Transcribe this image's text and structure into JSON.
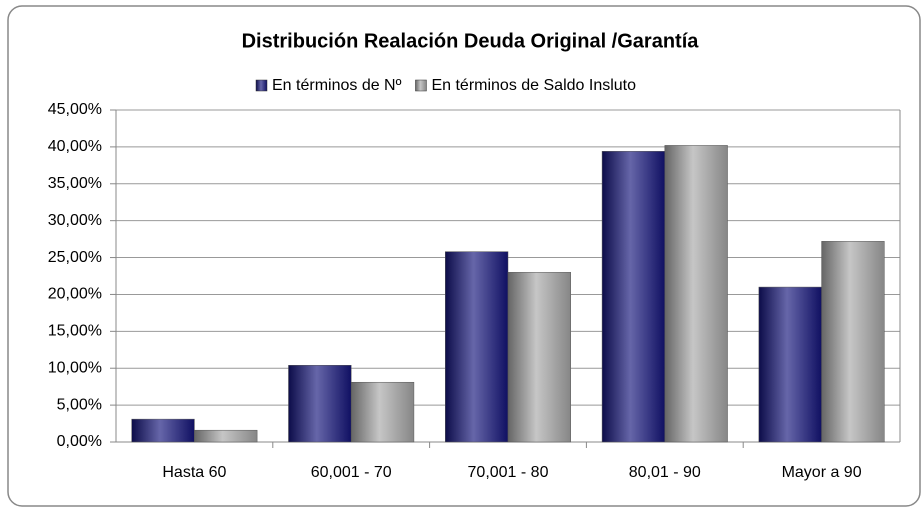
{
  "chart_data": {
    "type": "bar",
    "title": "Distribución Realación Deuda Original /Garantía",
    "categories": [
      "Hasta 60",
      "60,001 - 70",
      "70,001 - 80",
      "80,01 - 90",
      "Mayor a 90"
    ],
    "series": [
      {
        "name": "En términos de Nº",
        "color": "#14147a",
        "values": [
          3.1,
          10.4,
          25.8,
          39.4,
          21.0
        ]
      },
      {
        "name": "En términos de Saldo Insluto",
        "color": "#a8a8a8",
        "values": [
          1.6,
          8.1,
          23.0,
          40.2,
          27.2
        ]
      }
    ],
    "ylim": [
      0,
      45
    ],
    "yticks": [
      {
        "value": 0,
        "label": "0,00%"
      },
      {
        "value": 5,
        "label": "5,00%"
      },
      {
        "value": 10,
        "label": "10,00%"
      },
      {
        "value": 15,
        "label": "15,00%"
      },
      {
        "value": 20,
        "label": "20,00%"
      },
      {
        "value": 25,
        "label": "25,00%"
      },
      {
        "value": 30,
        "label": "30,00%"
      },
      {
        "value": 35,
        "label": "35,00%"
      },
      {
        "value": 40,
        "label": "40,00%"
      },
      {
        "value": 45,
        "label": "45,00%"
      }
    ],
    "grid": true,
    "legend": "top"
  }
}
